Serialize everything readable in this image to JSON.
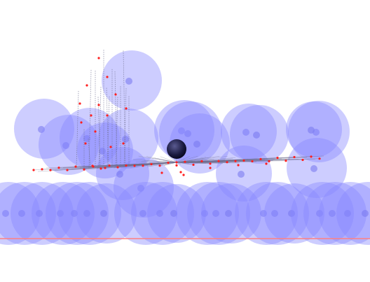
{
  "scene": {
    "background_color": "#ffffff",
    "sphere_color": "#8888ff",
    "sphere_opacity": 0.42,
    "sphere_core_color": "#7c7cf0",
    "marker_color": "#ff2020",
    "line_color": "#6f6f8f",
    "floor_line_color": "#ff8080",
    "dark_ball_color": "#1a1a40"
  }
}
